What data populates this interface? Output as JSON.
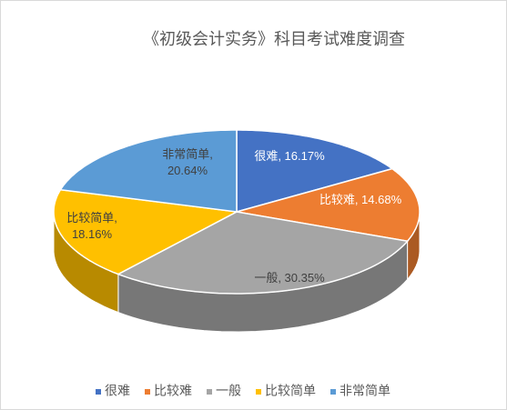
{
  "chart_data": {
    "type": "pie3d",
    "title": "《初级会计实务》科目考试难度调查",
    "categories": [
      "很难",
      "比较难",
      "一般",
      "比较简单",
      "非常简单"
    ],
    "values": [
      16.17,
      14.68,
      30.35,
      18.16,
      20.64
    ],
    "value_labels": [
      "很难, 16.17%",
      "比较难, 14.68%",
      "一般, 30.35%",
      "比较简单, 18.16%",
      "非常简单, 20.64%"
    ],
    "colors": [
      "#4472c4",
      "#ed7d31",
      "#a5a5a5",
      "#ffc000",
      "#5b9bd5"
    ],
    "legend": "bottom"
  }
}
